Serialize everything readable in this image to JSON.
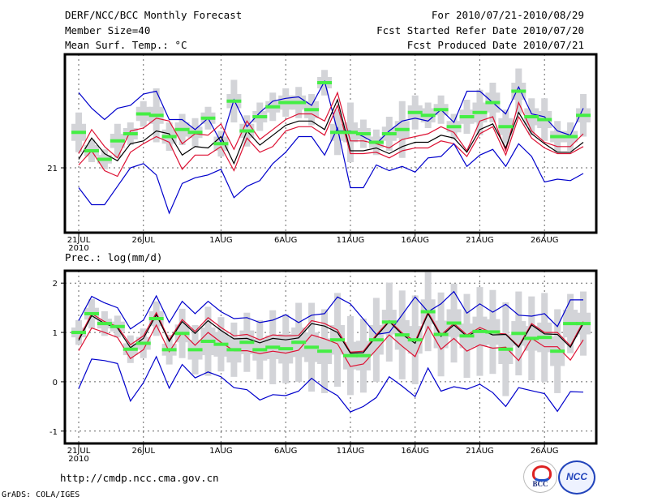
{
  "header": {
    "title": "DERF/NCC/BCC Monthly Forecast",
    "member_size": "Member Size=40",
    "period": "For 2010/07/21-2010/08/29",
    "started": "Fcst Started Refer Date 2010/07/20",
    "produced": "Fcst Produced Date 2010/07/21"
  },
  "footer": {
    "url": "http://cmdp.ncc.cma.gov.cn",
    "credit": "GrADS: COLA/IGES",
    "logo_bcc": "BCC",
    "logo_ncc": "NCC"
  },
  "colors": {
    "blue": "#0000cc",
    "red": "#dd1133",
    "black": "#000000",
    "green": "#44ee44",
    "box": "#d3d4d8",
    "grid": "#666666"
  },
  "chart_data": [
    {
      "type": "line",
      "title": "Mean Surf. Temp.: °C",
      "xlabel": "",
      "ylabel": "",
      "x_start": "2010-07-21",
      "n_days": 40,
      "x_ticks": [
        {
          "day": 0,
          "label": "21JUL",
          "sub": "2010"
        },
        {
          "day": 5,
          "label": "26JUL"
        },
        {
          "day": 11,
          "label": "1AUG"
        },
        {
          "day": 16,
          "label": "6AUG"
        },
        {
          "day": 21,
          "label": "11AUG"
        },
        {
          "day": 26,
          "label": "16AUG"
        },
        {
          "day": 31,
          "label": "21AUG"
        },
        {
          "day": 36,
          "label": "26AUG"
        }
      ],
      "y_ticks": [
        {
          "value": 21,
          "label": "21"
        }
      ],
      "ylim": [
        20.543,
        21.8
      ],
      "grid": true,
      "series": [
        {
          "name": "max",
          "color": "blue",
          "values": [
            21.53,
            21.42,
            21.34,
            21.42,
            21.44,
            21.52,
            21.54,
            21.34,
            21.34,
            21.27,
            21.35,
            21.18,
            21.48,
            21.29,
            21.39,
            21.47,
            21.49,
            21.5,
            21.44,
            21.61,
            21.26,
            21.26,
            21.22,
            21.17,
            21.26,
            21.33,
            21.35,
            21.33,
            21.41,
            21.32,
            21.54,
            21.54,
            21.46,
            21.38,
            21.57,
            21.38,
            21.36,
            21.26,
            21.23,
            21.42
          ]
        },
        {
          "name": "upper",
          "color": "red",
          "values": [
            21.1,
            21.27,
            21.15,
            21.07,
            21.26,
            21.28,
            21.35,
            21.33,
            21.17,
            21.24,
            21.23,
            21.31,
            21.13,
            21.33,
            21.2,
            21.27,
            21.34,
            21.38,
            21.38,
            21.33,
            21.53,
            21.19,
            21.19,
            21.17,
            21.14,
            21.2,
            21.22,
            21.24,
            21.29,
            21.25,
            21.12,
            21.33,
            21.36,
            21.12,
            21.46,
            21.26,
            21.18,
            21.15,
            21.15,
            21.24
          ]
        },
        {
          "name": "mean",
          "color": "black",
          "values": [
            21.06,
            21.21,
            21.1,
            21.05,
            21.17,
            21.19,
            21.26,
            21.24,
            21.09,
            21.15,
            21.14,
            21.22,
            21.03,
            21.26,
            21.16,
            21.23,
            21.3,
            21.33,
            21.33,
            21.27,
            21.48,
            21.12,
            21.12,
            21.14,
            21.1,
            21.15,
            21.18,
            21.18,
            21.23,
            21.21,
            21.11,
            21.27,
            21.31,
            21.14,
            21.39,
            21.24,
            21.17,
            21.11,
            21.11,
            21.18
          ]
        },
        {
          "name": "lower",
          "color": "red",
          "values": [
            21.02,
            21.12,
            20.98,
            20.94,
            21.11,
            21.17,
            21.22,
            21.18,
            20.99,
            21.09,
            21.09,
            21.15,
            20.98,
            21.21,
            21.11,
            21.15,
            21.26,
            21.29,
            21.29,
            21.23,
            21.44,
            21.1,
            21.1,
            21.11,
            21.07,
            21.12,
            21.14,
            21.14,
            21.19,
            21.17,
            21.08,
            21.24,
            21.29,
            21.09,
            21.36,
            21.21,
            21.14,
            21.1,
            21.1,
            21.15
          ]
        },
        {
          "name": "min",
          "color": "blue",
          "values": [
            20.86,
            20.74,
            20.74,
            20.87,
            21.0,
            21.03,
            20.95,
            20.68,
            20.89,
            20.93,
            20.95,
            20.99,
            20.79,
            20.87,
            20.91,
            21.03,
            21.11,
            21.22,
            21.22,
            21.09,
            21.28,
            20.86,
            20.86,
            21.02,
            20.98,
            21.01,
            20.97,
            21.07,
            21.08,
            21.17,
            21.01,
            21.09,
            21.13,
            21.01,
            21.17,
            21.08,
            20.9,
            20.92,
            20.91,
            20.96
          ]
        },
        {
          "name": "median",
          "color": "green",
          "values": [
            21.25,
            21.12,
            21.06,
            21.19,
            21.24,
            21.38,
            21.37,
            21.22,
            21.27,
            21.25,
            21.35,
            21.17,
            21.47,
            21.26,
            21.36,
            21.43,
            21.46,
            21.46,
            21.41,
            21.6,
            21.25,
            21.25,
            21.24,
            21.18,
            21.24,
            21.27,
            21.39,
            21.37,
            21.41,
            21.29,
            21.36,
            21.39,
            21.46,
            21.29,
            21.54,
            21.36,
            21.34,
            21.22,
            21.22,
            21.37
          ]
        }
      ],
      "spread": {
        "box_half": [
          0.06,
          0.04,
          0.03,
          0.05,
          0.04,
          0.05,
          0.06,
          0.05,
          0.05,
          0.04,
          0.04,
          0.05,
          0.05,
          0.05,
          0.04,
          0.04,
          0.05,
          0.05,
          0.06,
          0.04,
          0.06,
          0.07,
          0.04,
          0.04,
          0.05,
          0.06,
          0.05,
          0.05,
          0.04,
          0.04,
          0.05,
          0.07,
          0.07,
          0.06,
          0.06,
          0.06,
          0.06,
          0.04,
          0.04,
          0.05
        ],
        "whisker_half": [
          0.14,
          0.08,
          0.07,
          0.12,
          0.08,
          0.09,
          0.19,
          0.1,
          0.11,
          0.1,
          0.08,
          0.09,
          0.15,
          0.11,
          0.1,
          0.1,
          0.1,
          0.11,
          0.11,
          0.09,
          0.16,
          0.21,
          0.1,
          0.09,
          0.12,
          0.2,
          0.12,
          0.09,
          0.1,
          0.09,
          0.12,
          0.16,
          0.14,
          0.12,
          0.16,
          0.13,
          0.15,
          0.11,
          0.1,
          0.15
        ]
      }
    },
    {
      "type": "line",
      "title": "Prec.: log(mm/d)",
      "xlabel": "",
      "ylabel": "",
      "x_start": "2010-07-21",
      "n_days": 40,
      "x_ticks": [
        {
          "day": 0,
          "label": "21JUL",
          "sub": "2010"
        },
        {
          "day": 5,
          "label": "26JUL"
        },
        {
          "day": 11,
          "label": "1AUG"
        },
        {
          "day": 16,
          "label": "6AUG"
        },
        {
          "day": 21,
          "label": "11AUG"
        },
        {
          "day": 26,
          "label": "16AUG"
        },
        {
          "day": 31,
          "label": "21AUG"
        },
        {
          "day": 36,
          "label": "26AUG"
        }
      ],
      "y_ticks": [
        {
          "value": 2,
          "label": "2"
        },
        {
          "value": 1,
          "label": "1"
        },
        {
          "value": 0,
          "label": "0"
        },
        {
          "value": -1,
          "label": "-1"
        }
      ],
      "ylim": [
        -1.25,
        2.25
      ],
      "grid": true,
      "series": [
        {
          "name": "max",
          "color": "blue",
          "values": [
            1.24,
            1.73,
            1.6,
            1.5,
            1.07,
            1.25,
            1.74,
            1.2,
            1.63,
            1.38,
            1.63,
            1.42,
            1.28,
            1.3,
            1.2,
            1.25,
            1.36,
            1.2,
            1.35,
            1.38,
            1.72,
            1.58,
            1.27,
            0.96,
            1.0,
            1.36,
            1.72,
            1.42,
            1.58,
            1.83,
            1.39,
            1.58,
            1.41,
            1.57,
            1.35,
            1.33,
            1.38,
            1.12,
            1.66,
            1.66
          ]
        },
        {
          "name": "upper",
          "color": "red",
          "values": [
            0.87,
            1.38,
            1.22,
            1.12,
            0.75,
            0.93,
            1.4,
            0.85,
            1.26,
            1.02,
            1.3,
            1.1,
            0.93,
            0.96,
            0.85,
            0.95,
            0.93,
            0.94,
            1.24,
            1.18,
            1.05,
            0.6,
            0.62,
            0.95,
            1.24,
            0.99,
            0.82,
            1.41,
            0.95,
            1.18,
            0.95,
            1.1,
            0.99,
            0.97,
            0.72,
            1.18,
            1.0,
            1.0,
            0.73,
            1.22
          ]
        },
        {
          "name": "mean",
          "color": "black",
          "values": [
            0.84,
            1.34,
            1.18,
            1.09,
            0.69,
            0.88,
            1.36,
            0.82,
            1.22,
            0.98,
            1.24,
            1.04,
            0.87,
            0.88,
            0.79,
            0.88,
            0.85,
            0.89,
            1.18,
            1.13,
            1.0,
            0.58,
            0.59,
            0.92,
            1.22,
            0.96,
            0.78,
            1.38,
            0.92,
            1.15,
            0.92,
            1.06,
            0.95,
            0.96,
            0.7,
            1.15,
            0.97,
            0.96,
            0.7,
            1.18
          ]
        },
        {
          "name": "lower",
          "color": "red",
          "values": [
            0.63,
            1.09,
            1.0,
            0.9,
            0.47,
            0.65,
            1.15,
            0.61,
            1.0,
            0.74,
            1.0,
            0.8,
            0.63,
            0.63,
            0.57,
            0.62,
            0.58,
            0.64,
            0.95,
            0.87,
            0.77,
            0.31,
            0.36,
            0.65,
            0.95,
            0.72,
            0.51,
            1.12,
            0.66,
            0.88,
            0.62,
            0.75,
            0.68,
            0.7,
            0.43,
            0.88,
            0.71,
            0.71,
            0.44,
            0.85
          ]
        },
        {
          "name": "min",
          "color": "blue",
          "values": [
            -0.14,
            0.46,
            0.43,
            0.37,
            -0.39,
            -0.02,
            0.51,
            -0.13,
            0.35,
            0.08,
            0.2,
            0.1,
            -0.12,
            -0.16,
            -0.37,
            -0.26,
            -0.28,
            -0.19,
            0.07,
            -0.13,
            -0.28,
            -0.61,
            -0.5,
            -0.32,
            0.1,
            -0.09,
            -0.3,
            0.28,
            -0.19,
            -0.1,
            -0.15,
            -0.05,
            -0.22,
            -0.5,
            -0.12,
            -0.18,
            -0.24,
            -0.6,
            -0.2,
            -0.21
          ]
        },
        {
          "name": "median",
          "color": "green",
          "values": [
            1.0,
            1.38,
            1.18,
            1.12,
            0.66,
            0.78,
            1.28,
            0.65,
            0.98,
            0.65,
            0.82,
            0.76,
            0.65,
            0.8,
            0.65,
            0.7,
            0.67,
            0.8,
            0.7,
            0.62,
            0.85,
            0.53,
            0.53,
            0.85,
            1.21,
            0.95,
            0.85,
            1.42,
            0.96,
            1.19,
            0.93,
            1.02,
            1.01,
            0.66,
            0.98,
            0.88,
            0.9,
            0.62,
            1.18,
            1.18
          ]
        }
      ],
      "spread": {
        "box_half": [
          0.1,
          0.12,
          0.1,
          0.1,
          0.12,
          0.13,
          0.15,
          0.12,
          0.18,
          0.2,
          0.28,
          0.25,
          0.26,
          0.24,
          0.22,
          0.24,
          0.3,
          0.3,
          0.3,
          0.26,
          0.3,
          0.28,
          0.3,
          0.3,
          0.25,
          0.3,
          0.28,
          0.25,
          0.28,
          0.28,
          0.25,
          0.3,
          0.26,
          0.3,
          0.25,
          0.25,
          0.3,
          0.3,
          0.28,
          0.22
        ],
        "whisker_half": [
          0.25,
          0.3,
          0.25,
          0.22,
          0.28,
          0.3,
          0.35,
          0.3,
          0.5,
          0.5,
          0.7,
          0.55,
          0.55,
          0.6,
          0.6,
          0.75,
          0.7,
          0.8,
          0.9,
          0.85,
          0.95,
          0.8,
          0.75,
          0.85,
          0.8,
          0.9,
          0.9,
          0.8,
          0.85,
          0.8,
          0.85,
          0.9,
          0.85,
          0.95,
          0.85,
          0.85,
          0.9,
          0.85,
          0.6,
          0.65
        ]
      }
    }
  ]
}
